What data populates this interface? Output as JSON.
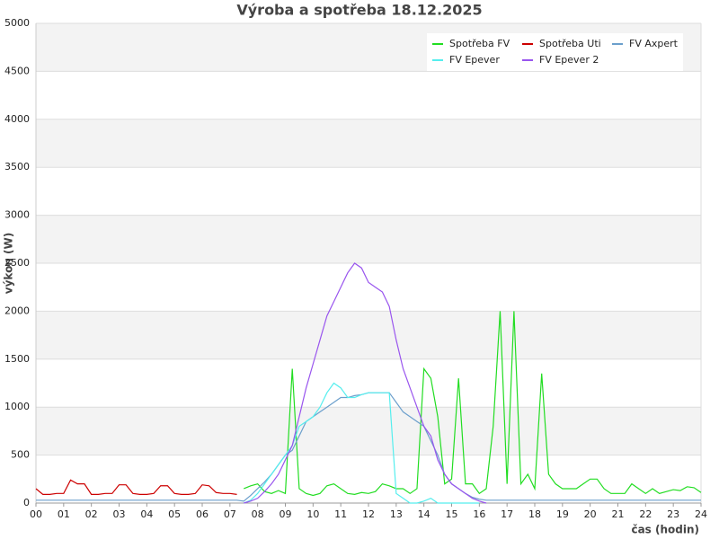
{
  "chart_data": {
    "type": "line",
    "title": "Výroba a spotřeba 18.12.2025",
    "x_label": "čas (hodin)",
    "y_label": "výkon (W)",
    "x": [
      0,
      0.25,
      0.5,
      0.75,
      1,
      1.25,
      1.5,
      1.75,
      2,
      2.25,
      2.5,
      2.75,
      3,
      3.25,
      3.5,
      3.75,
      4,
      4.25,
      4.5,
      4.75,
      5,
      5.25,
      5.5,
      5.75,
      6,
      6.25,
      6.5,
      6.75,
      7,
      7.25,
      7.5,
      7.75,
      8,
      8.25,
      8.5,
      8.75,
      9,
      9.25,
      9.5,
      9.75,
      10,
      10.25,
      10.5,
      10.75,
      11,
      11.25,
      11.5,
      11.75,
      12,
      12.25,
      12.5,
      12.75,
      13,
      13.25,
      13.5,
      13.75,
      14,
      14.25,
      14.5,
      14.75,
      15,
      15.25,
      15.5,
      15.75,
      16,
      16.25,
      16.5,
      16.75,
      17,
      17.25,
      17.5,
      17.75,
      18,
      18.25,
      18.5,
      18.75,
      19,
      19.25,
      19.5,
      19.75,
      20,
      20.25,
      20.5,
      20.75,
      21,
      21.25,
      21.5,
      21.75,
      22,
      22.25,
      22.5,
      22.75,
      23,
      23.25,
      23.5,
      23.75,
      24
    ],
    "series": [
      {
        "name": "Spotřeba FV",
        "color": "#22dd22",
        "values": [
          null,
          null,
          null,
          null,
          null,
          null,
          null,
          null,
          null,
          null,
          null,
          null,
          null,
          null,
          null,
          null,
          null,
          null,
          null,
          null,
          null,
          null,
          null,
          null,
          null,
          null,
          null,
          null,
          null,
          null,
          150,
          180,
          200,
          120,
          100,
          130,
          100,
          1400,
          150,
          100,
          80,
          100,
          180,
          200,
          150,
          100,
          90,
          110,
          100,
          120,
          200,
          180,
          150,
          150,
          100,
          150,
          1400,
          1300,
          900,
          200,
          250,
          1300,
          200,
          200,
          100,
          150,
          800,
          2000,
          200,
          2000,
          200,
          300,
          150,
          1350,
          300,
          200,
          150,
          150,
          150,
          200,
          250,
          250,
          150,
          100,
          100,
          100,
          200,
          150,
          100,
          150,
          100,
          120,
          140,
          130,
          170,
          160,
          110
        ]
      },
      {
        "name": "Spotřeba Uti",
        "color": "#cc0000",
        "values": [
          150,
          90,
          90,
          100,
          100,
          240,
          200,
          200,
          90,
          90,
          100,
          100,
          190,
          190,
          100,
          90,
          90,
          100,
          180,
          180,
          100,
          90,
          90,
          100,
          190,
          180,
          110,
          100,
          100,
          90,
          null,
          null,
          null,
          null,
          null,
          null,
          null,
          null,
          null,
          null,
          null,
          null,
          null,
          null,
          null,
          null,
          null,
          null,
          null,
          null,
          null,
          null,
          null,
          null,
          null,
          null,
          null,
          null,
          null,
          null,
          null,
          null,
          null,
          null,
          null,
          null,
          null,
          null,
          null,
          null,
          null,
          null,
          null,
          null,
          null,
          null,
          null,
          null,
          null,
          null,
          null,
          null,
          null,
          null,
          null,
          null,
          null,
          null,
          null,
          null,
          null,
          null,
          null,
          null,
          null,
          null,
          null
        ]
      },
      {
        "name": "FV Axpert",
        "color": "#6b9fcc",
        "values": [
          30,
          30,
          30,
          30,
          30,
          30,
          30,
          30,
          30,
          30,
          30,
          30,
          30,
          30,
          30,
          30,
          30,
          30,
          30,
          30,
          30,
          30,
          30,
          30,
          30,
          30,
          30,
          30,
          30,
          30,
          20,
          80,
          150,
          220,
          300,
          400,
          500,
          550,
          700,
          850,
          900,
          950,
          1000,
          1050,
          1100,
          1100,
          1120,
          1130,
          1150,
          1150,
          1150,
          1150,
          1050,
          950,
          900,
          850,
          800,
          650,
          500,
          300,
          200,
          150,
          100,
          60,
          40,
          30,
          30,
          30,
          30,
          30,
          30,
          30,
          30,
          30,
          30,
          30,
          30,
          30,
          30,
          30,
          30,
          30,
          30,
          30,
          30,
          30,
          30,
          30,
          30,
          30,
          30,
          30,
          30,
          30,
          30,
          30,
          30
        ]
      },
      {
        "name": "FV Epever",
        "color": "#55eeee",
        "values": [
          null,
          null,
          null,
          null,
          null,
          null,
          null,
          null,
          null,
          null,
          null,
          null,
          null,
          null,
          null,
          null,
          null,
          null,
          null,
          null,
          null,
          null,
          null,
          null,
          null,
          null,
          null,
          null,
          null,
          null,
          0,
          30,
          100,
          200,
          300,
          400,
          500,
          600,
          800,
          850,
          900,
          1000,
          1150,
          1250,
          1200,
          1100,
          1100,
          1130,
          1150,
          1150,
          1150,
          1150,
          100,
          50,
          0,
          0,
          20,
          50,
          0,
          0,
          0,
          0,
          0,
          0,
          0,
          null,
          null,
          null,
          null,
          null,
          null,
          null,
          null,
          null,
          null,
          null,
          null,
          null,
          null,
          null,
          null,
          null,
          null,
          null,
          null,
          null,
          null,
          null,
          null,
          null,
          null,
          null,
          null,
          null,
          null,
          null,
          null
        ]
      },
      {
        "name": "FV Epever 2",
        "color": "#9955ee",
        "values": [
          null,
          null,
          null,
          null,
          null,
          null,
          null,
          null,
          null,
          null,
          null,
          null,
          null,
          null,
          null,
          null,
          null,
          null,
          null,
          null,
          null,
          null,
          null,
          null,
          null,
          null,
          null,
          null,
          null,
          null,
          0,
          20,
          50,
          120,
          200,
          300,
          450,
          600,
          900,
          1200,
          1450,
          1700,
          1950,
          2100,
          2250,
          2400,
          2500,
          2450,
          2300,
          2250,
          2200,
          2050,
          1700,
          1400,
          1200,
          1000,
          800,
          700,
          450,
          300,
          200,
          150,
          100,
          50,
          20,
          0,
          null,
          null,
          null,
          null,
          null,
          null,
          null,
          null,
          null,
          null,
          null,
          null,
          null,
          null,
          null,
          null,
          null,
          null,
          null,
          null,
          null,
          null,
          null,
          null,
          null,
          null,
          null,
          null,
          null,
          null,
          null
        ]
      }
    ],
    "xlim": [
      0,
      24
    ],
    "xticks": [
      {
        "value": 0,
        "label": "00"
      },
      {
        "value": 1,
        "label": "01"
      },
      {
        "value": 2,
        "label": "02"
      },
      {
        "value": 3,
        "label": "03"
      },
      {
        "value": 4,
        "label": "04"
      },
      {
        "value": 5,
        "label": "05"
      },
      {
        "value": 6,
        "label": "06"
      },
      {
        "value": 7,
        "label": "07"
      },
      {
        "value": 8,
        "label": "08"
      },
      {
        "value": 9,
        "label": "09"
      },
      10,
      11,
      12,
      13,
      14,
      15,
      16,
      17,
      18,
      19,
      20,
      21,
      22,
      23,
      24
    ],
    "ylim": [
      0,
      5000
    ],
    "yticks": [
      0,
      500,
      1000,
      1500,
      2000,
      2500,
      3000,
      3500,
      4000,
      4500,
      5000
    ],
    "grid": true,
    "legend": "upper-right"
  }
}
